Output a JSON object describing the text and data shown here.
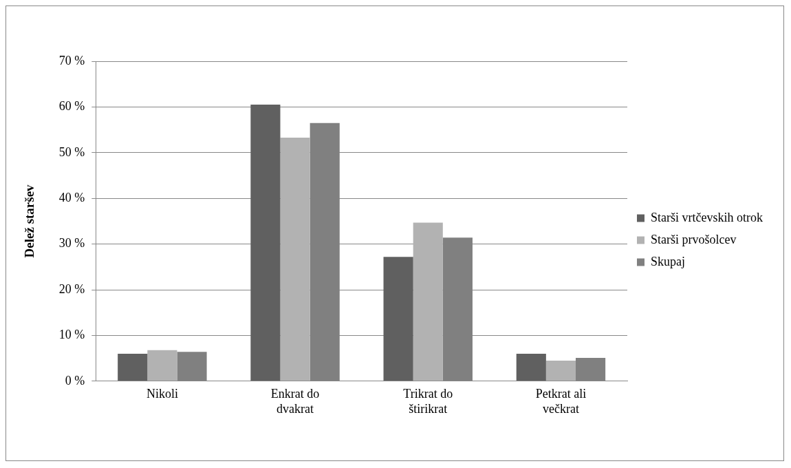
{
  "chart_data": {
    "type": "bar",
    "ylabel": "Delež staršev",
    "categories": [
      "Nikoli",
      "Enkrat do dvakrat",
      "Trikrat do štirikrat",
      "Petkrat ali večkrat"
    ],
    "series": [
      {
        "name": "Starši vrtčevskih otrok",
        "color": "#606060",
        "values": [
          6.0,
          60.5,
          27.2,
          6.0
        ]
      },
      {
        "name": "Starši prvošolcev",
        "color": "#b2b2b2",
        "values": [
          6.8,
          53.3,
          34.7,
          4.5
        ]
      },
      {
        "name": "Skupaj",
        "color": "#808080",
        "values": [
          6.4,
          56.5,
          31.4,
          5.1
        ]
      }
    ],
    "ylim": [
      0,
      70
    ],
    "yticks": [
      {
        "value": 0,
        "label": "0 %"
      },
      {
        "value": 10,
        "label": "10 %"
      },
      {
        "value": 20,
        "label": "20 %"
      },
      {
        "value": 30,
        "label": "30 %"
      },
      {
        "value": 40,
        "label": "40 %"
      },
      {
        "value": 50,
        "label": "50 %"
      },
      {
        "value": 60,
        "label": "60 %"
      },
      {
        "value": 70,
        "label": "70 %"
      }
    ],
    "grid": "y",
    "legend": "right"
  }
}
